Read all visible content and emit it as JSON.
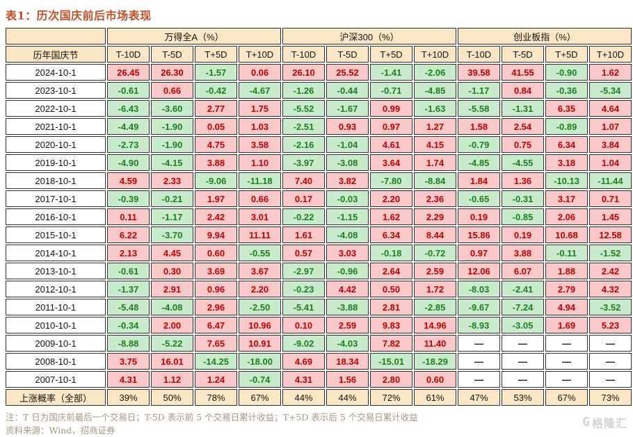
{
  "title": "表1：历次国庆前后市场表现",
  "table": {
    "corner_label": "",
    "row_header": "历年国庆节",
    "groups": [
      "万得全A（%）",
      "沪深300（%）",
      "创业板指（%）"
    ],
    "sub_columns": [
      "T-10D",
      "T-5D",
      "T+5D",
      "T+10D"
    ],
    "rows": [
      {
        "date": "2024-10-1",
        "values": [
          "26.45",
          "26.30",
          "-1.57",
          "0.06",
          "26.10",
          "25.52",
          "-1.41",
          "-2.06",
          "39.58",
          "41.55",
          "-0.90",
          "1.62"
        ]
      },
      {
        "date": "2023-10-1",
        "values": [
          "-0.61",
          "0.66",
          "-0.42",
          "-4.67",
          "-1.26",
          "-0.44",
          "-0.71",
          "-4.85",
          "-1.17",
          "0.84",
          "-0.36",
          "-5.34"
        ]
      },
      {
        "date": "2022-10-1",
        "values": [
          "-6.43",
          "-3.60",
          "2.77",
          "1.75",
          "-5.52",
          "-1.67",
          "0.99",
          "-1.63",
          "-5.58",
          "-1.31",
          "6.35",
          "4.64"
        ]
      },
      {
        "date": "2021-10-1",
        "values": [
          "-4.49",
          "-1.90",
          "0.05",
          "1.03",
          "-2.51",
          "0.93",
          "0.97",
          "1.27",
          "1.58",
          "2.54",
          "-0.89",
          "1.07"
        ]
      },
      {
        "date": "2020-10-1",
        "values": [
          "-2.73",
          "-1.90",
          "4.75",
          "3.58",
          "-2.16",
          "-1.04",
          "4.61",
          "4.15",
          "-0.79",
          "0.75",
          "6.34",
          "3.84"
        ]
      },
      {
        "date": "2019-10-1",
        "values": [
          "-4.90",
          "-4.15",
          "3.88",
          "1.10",
          "-3.97",
          "-3.08",
          "3.64",
          "1.74",
          "-4.85",
          "-4.55",
          "3.18",
          "1.04"
        ]
      },
      {
        "date": "2018-10-1",
        "values": [
          "4.59",
          "2.33",
          "-9.06",
          "-11.18",
          "7.40",
          "3.82",
          "-7.80",
          "-8.84",
          "1.84",
          "1.36",
          "-10.13",
          "-11.44"
        ]
      },
      {
        "date": "2017-10-1",
        "values": [
          "-0.39",
          "-0.21",
          "1.97",
          "0.66",
          "0.17",
          "-0.03",
          "2.20",
          "2.36",
          "-0.65",
          "-0.31",
          "3.17",
          "0.71"
        ]
      },
      {
        "date": "2016-10-1",
        "values": [
          "0.11",
          "-1.17",
          "2.42",
          "3.01",
          "-0.22",
          "-1.15",
          "1.62",
          "2.29",
          "0.19",
          "-0.85",
          "2.06",
          "1.45"
        ]
      },
      {
        "date": "2015-10-1",
        "values": [
          "6.22",
          "-3.70",
          "9.94",
          "11.11",
          "1.61",
          "-4.08",
          "6.34",
          "8.44",
          "15.86",
          "0.19",
          "10.68",
          "12.58"
        ]
      },
      {
        "date": "2014-10-1",
        "values": [
          "2.13",
          "4.45",
          "0.60",
          "-0.55",
          "0.57",
          "3.03",
          "-0.18",
          "-0.72",
          "0.97",
          "3.88",
          "-0.11",
          "-1.52"
        ]
      },
      {
        "date": "2013-10-1",
        "values": [
          "-0.61",
          "0.30",
          "3.69",
          "3.67",
          "-2.97",
          "-0.96",
          "2.64",
          "2.59",
          "12.06",
          "6.07",
          "1.88",
          "2.42"
        ]
      },
      {
        "date": "2012-10-1",
        "values": [
          "-1.37",
          "2.91",
          "0.96",
          "2.20",
          "-0.23",
          "4.42",
          "0.50",
          "1.72",
          "-8.03",
          "-2.41",
          "2.79",
          "4.32"
        ]
      },
      {
        "date": "2011-10-1",
        "values": [
          "-5.48",
          "-4.08",
          "2.96",
          "-2.50",
          "-5.41",
          "-3.88",
          "2.81",
          "-2.85",
          "-9.67",
          "-7.24",
          "4.94",
          "-3.52"
        ]
      },
      {
        "date": "2010-10-1",
        "values": [
          "-0.34",
          "2.00",
          "6.47",
          "10.96",
          "0.10",
          "2.59",
          "9.83",
          "14.96",
          "-8.93",
          "-3.05",
          "1.69",
          "5.23"
        ]
      },
      {
        "date": "2009-10-1",
        "values": [
          "-8.88",
          "-5.22",
          "7.65",
          "10.91",
          "-9.02",
          "-4.03",
          "7.82",
          "11.40",
          "—",
          "—",
          "—",
          "—"
        ]
      },
      {
        "date": "2008-10-1",
        "values": [
          "3.75",
          "16.01",
          "-14.25",
          "-18.00",
          "4.69",
          "18.34",
          "-15.01",
          "-18.29",
          "—",
          "—",
          "—",
          "—"
        ]
      },
      {
        "date": "2007-10-1",
        "values": [
          "4.31",
          "1.12",
          "1.24",
          "-0.74",
          "4.31",
          "1.56",
          "2.80",
          "0.60",
          "—",
          "—",
          "—",
          "—"
        ]
      }
    ],
    "probability_row": {
      "label": "上涨概率（全部）",
      "values": [
        "39%",
        "50%",
        "78%",
        "67%",
        "44%",
        "44%",
        "72%",
        "61%",
        "47%",
        "53%",
        "67%",
        "73%"
      ]
    }
  },
  "notes": {
    "note": "注：T 日为国庆前最后一个交易日；T-5D 表示前 5 个交易日累计收益；T+5D 表示后 5 个交易日累计收益",
    "source": "资料来源：Wind，招商证券"
  },
  "logo": {
    "g": "G",
    "text": "格隆汇"
  },
  "colors": {
    "title": "#bf4f28",
    "header_bg": "#fbe7c5",
    "positive_bg": "#f9c8c9",
    "positive_text": "#c00000",
    "negative_bg": "#c9ebcc",
    "negative_text": "#1e7d1e",
    "border": "#2e2e2e",
    "note_text": "#a59780"
  }
}
